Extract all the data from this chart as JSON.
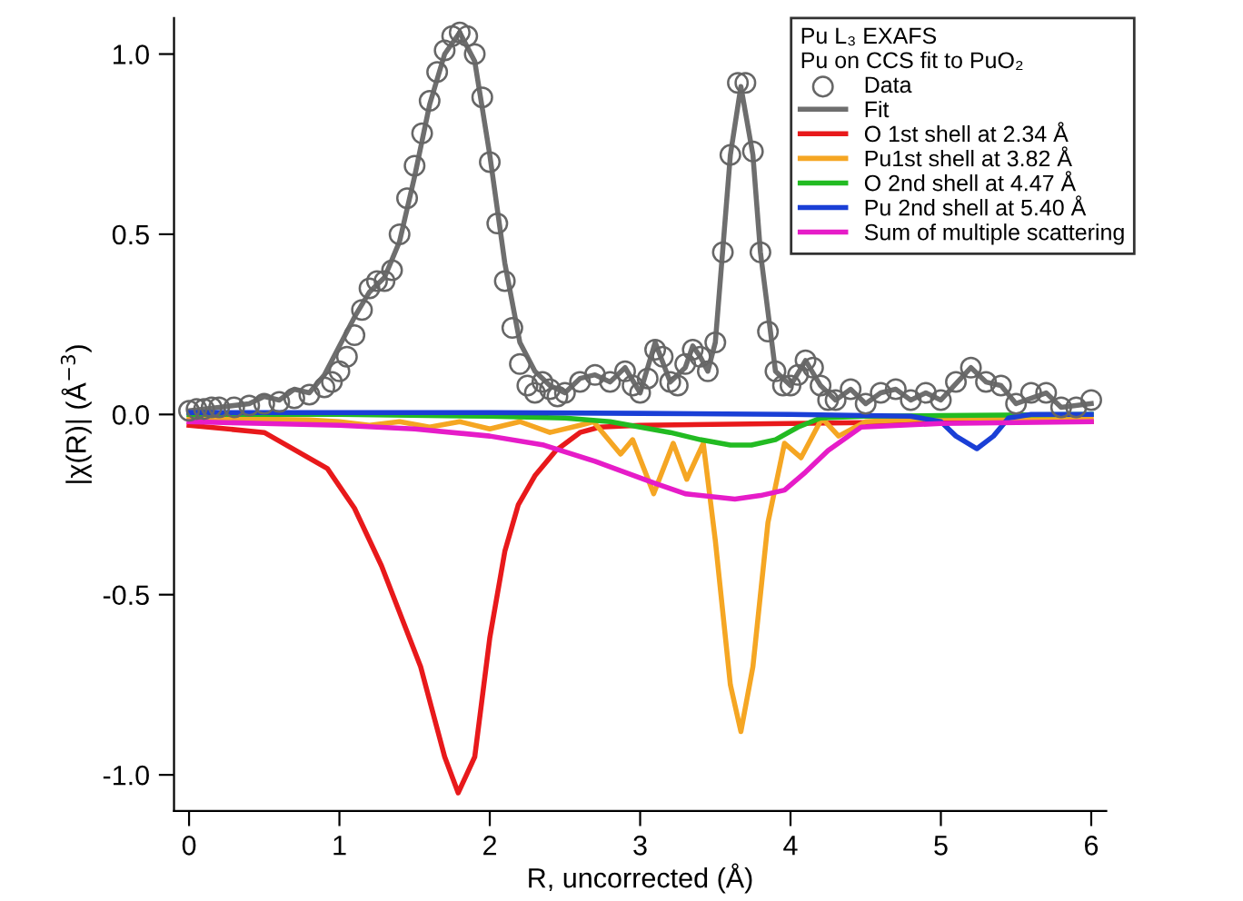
{
  "chart_data": {
    "type": "line",
    "xlabel": "R, uncorrected (Å)",
    "ylabel": "|χ(R)| (Å$^{−3}$)",
    "legend_title": "Pu L₃ EXAFS\nPu on CCS fit to PuO₂",
    "xlim": [
      -0.1,
      6.1
    ],
    "ylim": [
      -1.1,
      1.1
    ],
    "xticks": [
      0,
      1,
      2,
      3,
      4,
      5,
      6
    ],
    "yticks": [
      {
        "value": -1.0,
        "label": "-1.0"
      },
      {
        "value": -0.5,
        "label": "-0.5"
      },
      {
        "value": 0.0,
        "label": "0.0"
      },
      {
        "value": 0.5,
        "label": "0.5"
      },
      {
        "value": 1.0,
        "label": "1.0"
      }
    ],
    "legend": "top right",
    "series": [
      {
        "name": "Data",
        "type": "scatter",
        "marker": "circle",
        "color": "#666666",
        "x": [
          0,
          0.05,
          0.1,
          0.15,
          0.2,
          0.3,
          0.4,
          0.5,
          0.6,
          0.7,
          0.8,
          0.9,
          0.95,
          1.0,
          1.05,
          1.1,
          1.15,
          1.2,
          1.25,
          1.3,
          1.35,
          1.4,
          1.45,
          1.5,
          1.55,
          1.6,
          1.65,
          1.7,
          1.75,
          1.8,
          1.85,
          1.9,
          1.95,
          2.0,
          2.05,
          2.1,
          2.15,
          2.2,
          2.25,
          2.3,
          2.35,
          2.4,
          2.45,
          2.5,
          2.6,
          2.7,
          2.8,
          2.9,
          2.95,
          3.0,
          3.05,
          3.1,
          3.15,
          3.2,
          3.25,
          3.3,
          3.35,
          3.4,
          3.45,
          3.5,
          3.55,
          3.6,
          3.65,
          3.7,
          3.75,
          3.8,
          3.85,
          3.9,
          3.95,
          4.0,
          4.05,
          4.1,
          4.15,
          4.2,
          4.25,
          4.3,
          4.4,
          4.5,
          4.6,
          4.7,
          4.8,
          4.9,
          5.0,
          5.1,
          5.2,
          5.3,
          5.4,
          5.5,
          5.6,
          5.7,
          5.8,
          5.9,
          6.0
        ],
        "values": [
          0.01,
          0.015,
          0.015,
          0.02,
          0.02,
          0.02,
          0.025,
          0.03,
          0.035,
          0.045,
          0.055,
          0.075,
          0.09,
          0.12,
          0.16,
          0.22,
          0.29,
          0.35,
          0.37,
          0.37,
          0.4,
          0.5,
          0.6,
          0.69,
          0.78,
          0.87,
          0.95,
          1.01,
          1.05,
          1.06,
          1.05,
          1.0,
          0.88,
          0.7,
          0.53,
          0.37,
          0.24,
          0.14,
          0.08,
          0.06,
          0.09,
          0.07,
          0.05,
          0.06,
          0.09,
          0.11,
          0.09,
          0.12,
          0.08,
          0.06,
          0.1,
          0.18,
          0.16,
          0.09,
          0.08,
          0.14,
          0.18,
          0.16,
          0.12,
          0.2,
          0.45,
          0.72,
          0.92,
          0.92,
          0.73,
          0.45,
          0.23,
          0.12,
          0.08,
          0.08,
          0.11,
          0.15,
          0.13,
          0.08,
          0.04,
          0.04,
          0.07,
          0.03,
          0.06,
          0.07,
          0.04,
          0.06,
          0.04,
          0.09,
          0.13,
          0.09,
          0.08,
          0.03,
          0.06,
          0.06,
          0.02,
          0.02,
          0.04
        ]
      },
      {
        "name": "Fit",
        "color": "#6e6e6e",
        "x": [
          0,
          0.2,
          0.4,
          0.5,
          0.6,
          0.7,
          0.8,
          0.9,
          1.0,
          1.1,
          1.2,
          1.3,
          1.4,
          1.5,
          1.6,
          1.7,
          1.8,
          1.9,
          2.0,
          2.1,
          2.2,
          2.3,
          2.4,
          2.5,
          2.6,
          2.7,
          2.8,
          2.9,
          3.0,
          3.1,
          3.2,
          3.3,
          3.35,
          3.4,
          3.45,
          3.5,
          3.6,
          3.67,
          3.75,
          3.8,
          3.9,
          4.0,
          4.1,
          4.2,
          4.3,
          4.4,
          4.5,
          4.6,
          4.7,
          4.8,
          4.9,
          5.0,
          5.2,
          5.3,
          5.4,
          5.5,
          5.7,
          5.8,
          6.0
        ],
        "values": [
          0.01,
          0.02,
          0.03,
          0.05,
          0.04,
          0.07,
          0.06,
          0.11,
          0.19,
          0.27,
          0.34,
          0.38,
          0.48,
          0.66,
          0.86,
          1.0,
          1.06,
          0.98,
          0.72,
          0.42,
          0.2,
          0.12,
          0.08,
          0.06,
          0.1,
          0.11,
          0.09,
          0.13,
          0.06,
          0.2,
          0.09,
          0.13,
          0.19,
          0.16,
          0.12,
          0.2,
          0.72,
          0.91,
          0.72,
          0.45,
          0.12,
          0.08,
          0.15,
          0.08,
          0.04,
          0.07,
          0.03,
          0.06,
          0.07,
          0.04,
          0.06,
          0.04,
          0.13,
          0.09,
          0.08,
          0.03,
          0.06,
          0.02,
          0.03
        ]
      },
      {
        "name": "O 1st shell at 2.34 Å",
        "color": "#e8191b",
        "x": [
          0,
          0.5,
          0.92,
          1.1,
          1.28,
          1.54,
          1.7,
          1.79,
          1.9,
          2.0,
          2.1,
          2.19,
          2.3,
          2.44,
          2.6,
          2.73,
          3.0,
          4.0,
          5.0,
          6.0
        ],
        "values": [
          -0.03,
          -0.05,
          -0.15,
          -0.26,
          -0.42,
          -0.7,
          -0.95,
          -1.05,
          -0.95,
          -0.62,
          -0.38,
          -0.25,
          -0.17,
          -0.1,
          -0.05,
          -0.035,
          -0.03,
          -0.025,
          -0.02,
          -0.02
        ]
      },
      {
        "name": "Pu1st shell at 3.82 Å",
        "color": "#f5a623",
        "x": [
          0,
          0.8,
          1.0,
          1.2,
          1.4,
          1.6,
          1.8,
          2.0,
          2.2,
          2.4,
          2.6,
          2.69,
          2.87,
          2.95,
          3.09,
          3.22,
          3.31,
          3.42,
          3.5,
          3.6,
          3.67,
          3.75,
          3.85,
          3.96,
          4.07,
          4.21,
          4.32,
          4.5,
          5.0,
          6.0
        ],
        "values": [
          -0.01,
          -0.015,
          -0.02,
          -0.03,
          -0.02,
          -0.035,
          -0.02,
          -0.04,
          -0.02,
          -0.05,
          -0.03,
          -0.02,
          -0.11,
          -0.07,
          -0.22,
          -0.08,
          -0.18,
          -0.08,
          -0.35,
          -0.75,
          -0.88,
          -0.7,
          -0.3,
          -0.08,
          -0.12,
          -0.01,
          -0.06,
          -0.02,
          -0.01,
          -0.01
        ]
      },
      {
        "name": "O 2nd shell at 4.47 Å",
        "color": "#22bb22",
        "x": [
          0,
          1.0,
          2.0,
          2.5,
          2.8,
          3.0,
          3.2,
          3.4,
          3.6,
          3.74,
          3.9,
          4.05,
          4.2,
          4.5,
          5.0,
          6.0
        ],
        "values": [
          0,
          0,
          -0.005,
          -0.01,
          -0.02,
          -0.035,
          -0.05,
          -0.07,
          -0.085,
          -0.085,
          -0.07,
          -0.035,
          -0.01,
          -0.005,
          -0.003,
          0
        ]
      },
      {
        "name": "Pu 2nd shell at 5.40 Å",
        "color": "#1a3fd6",
        "x": [
          0,
          1.0,
          2.0,
          3.0,
          4.0,
          4.8,
          5.0,
          5.1,
          5.24,
          5.35,
          5.45,
          5.6,
          6.0
        ],
        "values": [
          0.005,
          0.005,
          0.005,
          0.003,
          0.0,
          -0.005,
          -0.02,
          -0.06,
          -0.095,
          -0.06,
          -0.01,
          0,
          0
        ]
      },
      {
        "name": "Sum of multiple scattering",
        "color": "#e61cc8",
        "x": [
          0,
          0.5,
          1.0,
          1.5,
          2.0,
          2.36,
          2.7,
          3.09,
          3.3,
          3.63,
          3.8,
          3.96,
          4.1,
          4.25,
          4.47,
          5.0,
          6.0
        ],
        "values": [
          -0.02,
          -0.025,
          -0.03,
          -0.04,
          -0.06,
          -0.085,
          -0.13,
          -0.19,
          -0.22,
          -0.235,
          -0.225,
          -0.21,
          -0.16,
          -0.1,
          -0.035,
          -0.025,
          -0.02
        ]
      }
    ]
  }
}
